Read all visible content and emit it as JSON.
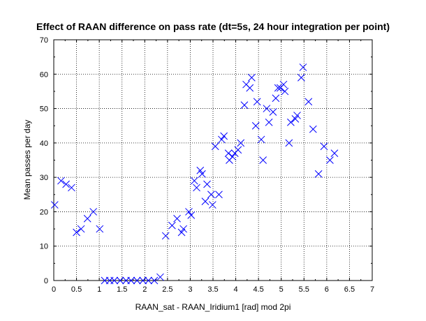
{
  "chart_data": {
    "type": "scatter",
    "title": "Effect of RAAN difference on pass rate (dt=5s, 24 hour integration per point)",
    "xlabel": "RAAN_sat - RAAN_Iridium1 [rad] mod 2pi",
    "ylabel": "Mean passes per day",
    "xlim": [
      0,
      7
    ],
    "ylim": [
      0,
      70
    ],
    "xticks": [
      0,
      0.5,
      1,
      1.5,
      2,
      2.5,
      3,
      3.5,
      4,
      4.5,
      5,
      5.5,
      6,
      6.5,
      7
    ],
    "xtick_labels": [
      "0",
      "0.5",
      "1",
      "1.5",
      "2",
      "2.5",
      "3",
      "3.5",
      "4",
      "4.5",
      "5",
      "5.5",
      "6",
      "6.5",
      "7"
    ],
    "yticks": [
      0,
      10,
      20,
      30,
      40,
      50,
      60,
      70
    ],
    "ytick_labels": [
      "0",
      "10",
      "20",
      "30",
      "40",
      "50",
      "60",
      "70"
    ],
    "grid": true,
    "marker": "x",
    "series": [
      {
        "color": "#0000ff",
        "x": [
          0.02,
          0.16,
          0.27,
          0.39,
          0.5,
          0.6,
          0.74,
          0.87,
          1.01,
          1.12,
          1.23,
          1.33,
          1.46,
          1.59,
          1.7,
          1.83,
          1.96,
          2.08,
          2.21,
          2.34,
          2.46,
          2.6,
          2.71,
          2.81,
          2.85,
          2.97,
          3.02,
          3.09,
          3.14,
          3.22,
          3.26,
          3.33,
          3.37,
          3.46,
          3.49,
          3.55,
          3.63,
          3.69,
          3.74,
          3.84,
          3.86,
          3.93,
          3.98,
          4.05,
          4.11,
          4.19,
          4.23,
          4.31,
          4.35,
          4.44,
          4.47,
          4.56,
          4.6,
          4.68,
          4.73,
          4.82,
          4.88,
          4.93,
          4.98,
          5.05,
          5.08,
          5.17,
          5.21,
          5.31,
          5.35,
          5.44,
          5.48,
          5.6,
          5.7,
          5.82,
          5.94,
          6.07,
          6.17
        ],
        "y": [
          22,
          29,
          28,
          27,
          14,
          15,
          18,
          20,
          15,
          0,
          0,
          0,
          0,
          0,
          0,
          0,
          0,
          0,
          0,
          1,
          13,
          16,
          18,
          14,
          15,
          20,
          19,
          29,
          27,
          32,
          31,
          23,
          28,
          25,
          22,
          39,
          25,
          41,
          42,
          37,
          35,
          36,
          37,
          38,
          40,
          51,
          57,
          56,
          59,
          45,
          52,
          41,
          35,
          50,
          46,
          49,
          53,
          56,
          56,
          57,
          55,
          40,
          46,
          47,
          48,
          59,
          62,
          52,
          44,
          31,
          39,
          35,
          37
        ]
      }
    ]
  }
}
